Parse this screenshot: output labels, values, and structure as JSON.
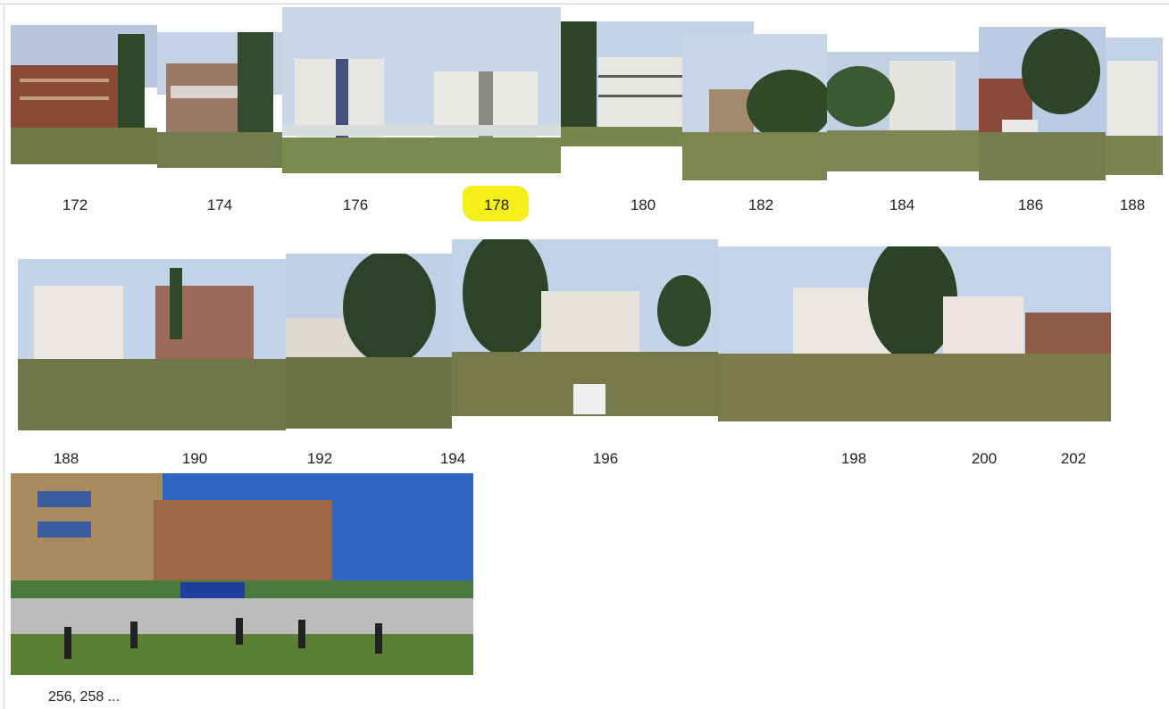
{
  "row1": {
    "labels": [
      "172",
      "174",
      "176",
      "178",
      "180",
      "182",
      "184",
      "186",
      "188"
    ]
  },
  "row2": {
    "labels": [
      "188",
      "190",
      "192",
      "194",
      "196",
      "198",
      "200",
      "202"
    ]
  },
  "row3": {
    "labels": [
      "256, 258 ..."
    ]
  },
  "highlight": {
    "label": "178",
    "color": "#f5ef1a"
  }
}
